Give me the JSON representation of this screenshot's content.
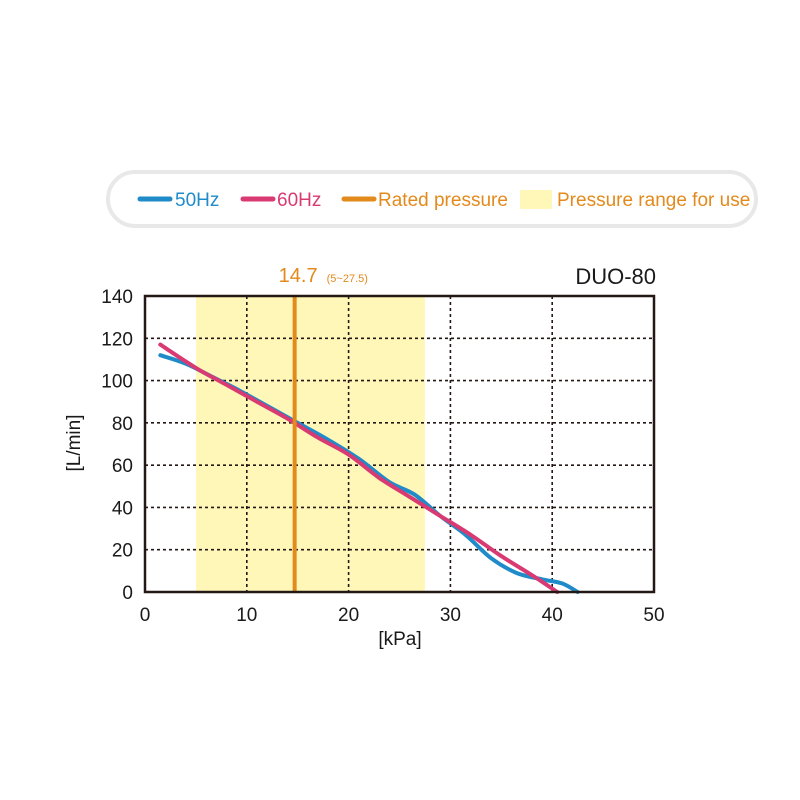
{
  "colors": {
    "series_50hz": "#1f8bc9",
    "series_60hz": "#d93a72",
    "rated": "#e38a1c",
    "range_fill": "#fff7b8",
    "legend_border": "#e8e8e8",
    "axis": "#231815",
    "grid": "#231815"
  },
  "chart_data": {
    "type": "line",
    "title": "DUO-80",
    "xlabel": "[kPa]",
    "ylabel": "[L/min]",
    "xlim": [
      0,
      50
    ],
    "ylim": [
      0,
      140
    ],
    "xticks": [
      0,
      10,
      20,
      30,
      40,
      50
    ],
    "xtick_labels": [
      "0",
      "10",
      "20",
      "30",
      "40",
      "50"
    ],
    "yticks": [
      0,
      20,
      40,
      60,
      80,
      100,
      120,
      140
    ],
    "ytick_labels": [
      "0",
      "20",
      "40",
      "60",
      "80",
      "100",
      "120",
      "140"
    ],
    "grid": true,
    "legend": [
      {
        "label": "50Hz",
        "kind": "line",
        "color_key": "series_50hz"
      },
      {
        "label": "60Hz",
        "kind": "line",
        "color_key": "series_60hz"
      },
      {
        "label": "Rated pressure",
        "kind": "line",
        "color_key": "rated"
      },
      {
        "label": "Pressure range for use",
        "kind": "box",
        "color_key": "range_fill"
      }
    ],
    "series": [
      {
        "name": "50Hz",
        "x": [
          1.5,
          4,
          6.5,
          9,
          12,
          15,
          18,
          21,
          24,
          26.5,
          29,
          31.5,
          34,
          36.5,
          39,
          41,
          42.5
        ],
        "y": [
          112,
          108,
          102,
          96,
          88,
          80,
          72,
          63,
          52,
          46,
          36,
          27,
          16,
          9,
          6,
          4,
          0
        ]
      },
      {
        "name": "60Hz",
        "x": [
          1.5,
          5,
          8,
          11,
          14,
          17,
          20,
          23,
          26,
          29,
          32,
          35,
          38,
          40.5
        ],
        "y": [
          117,
          106,
          98,
          90,
          82,
          73,
          65,
          54,
          45,
          36,
          27,
          17,
          8,
          0
        ]
      }
    ],
    "rated_pressure": {
      "x": 14.7,
      "label": "14.7",
      "range_label": "(5~27.5)"
    },
    "pressure_range": [
      5,
      27.5
    ]
  }
}
